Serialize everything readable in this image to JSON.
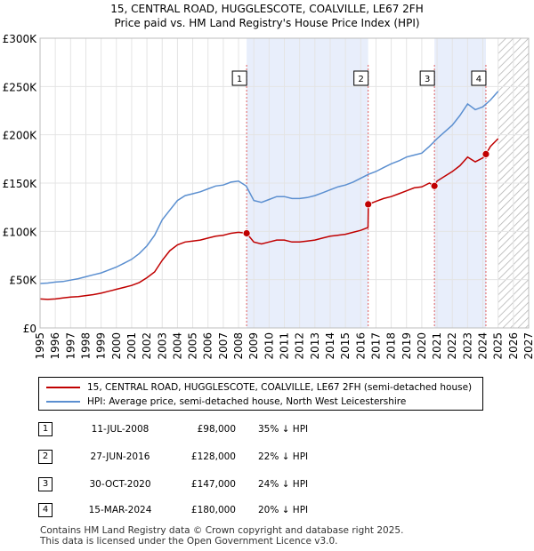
{
  "title_line1": "15, CENTRAL ROAD, HUGGLESCOTE, COALVILLE, LE67 2FH",
  "title_line2": "Price paid vs. HM Land Registry's House Price Index (HPI)",
  "chart_data": {
    "type": "line",
    "title": "15, CENTRAL ROAD, HUGGLESCOTE, COALVILLE, LE67 2FH — Price paid vs. HM Land Registry's House Price Index (HPI)",
    "xlabel": "",
    "ylabel": "",
    "xlim": [
      1995,
      2027
    ],
    "ylim": [
      0,
      300000
    ],
    "x_ticks": [
      1995,
      1996,
      1997,
      1998,
      1999,
      2000,
      2001,
      2002,
      2003,
      2004,
      2005,
      2006,
      2007,
      2008,
      2009,
      2010,
      2011,
      2012,
      2013,
      2014,
      2015,
      2016,
      2017,
      2018,
      2019,
      2020,
      2021,
      2022,
      2023,
      2024,
      2025,
      2026,
      2027
    ],
    "y_ticks": [
      0,
      50000,
      100000,
      150000,
      200000,
      250000,
      300000
    ],
    "y_tick_labels": [
      "£0",
      "£50K",
      "£100K",
      "£150K",
      "£200K",
      "£250K",
      "£300K"
    ],
    "shaded_regions": [
      [
        2008.53,
        2016.49
      ],
      [
        2020.83,
        2024.2
      ]
    ],
    "forecast_hatch_from": 2025.0,
    "series": [
      {
        "name": "HPI: Average price, semi-detached house, North West Leicestershire",
        "color": "#5b8fd0",
        "x": [
          1995.0,
          1995.5,
          1996.0,
          1996.5,
          1997.0,
          1997.5,
          1998.0,
          1998.5,
          1999.0,
          1999.5,
          2000.0,
          2000.5,
          2001.0,
          2001.5,
          2002.0,
          2002.5,
          2003.0,
          2003.5,
          2004.0,
          2004.5,
          2005.0,
          2005.5,
          2006.0,
          2006.5,
          2007.0,
          2007.5,
          2008.0,
          2008.5,
          2009.0,
          2009.5,
          2010.0,
          2010.5,
          2011.0,
          2011.5,
          2012.0,
          2012.5,
          2013.0,
          2013.5,
          2014.0,
          2014.5,
          2015.0,
          2015.5,
          2016.0,
          2016.5,
          2017.0,
          2017.5,
          2018.0,
          2018.5,
          2019.0,
          2019.5,
          2020.0,
          2020.5,
          2021.0,
          2021.5,
          2022.0,
          2022.5,
          2023.0,
          2023.5,
          2024.0,
          2024.5,
          2025.0
        ],
        "values": [
          46000,
          46500,
          47500,
          48000,
          49500,
          51000,
          53000,
          55000,
          57000,
          60000,
          63000,
          67000,
          71000,
          77000,
          85000,
          96000,
          112000,
          122000,
          132000,
          137000,
          139000,
          141000,
          144000,
          147000,
          148000,
          151000,
          152000,
          147000,
          132000,
          130000,
          133000,
          136000,
          136000,
          134000,
          134000,
          135000,
          137000,
          140000,
          143000,
          146000,
          148000,
          151000,
          155000,
          159000,
          162000,
          166000,
          170000,
          173000,
          177000,
          179000,
          181000,
          188000,
          196000,
          203000,
          210000,
          220000,
          232000,
          226000,
          229000,
          236000,
          245000
        ]
      },
      {
        "name": "15, CENTRAL ROAD, HUGGLESCOTE, COALVILLE, LE67 2FH (semi-detached house)",
        "color": "#c00000",
        "x": [
          1995.0,
          1995.5,
          1996.0,
          1996.5,
          1997.0,
          1997.5,
          1998.0,
          1998.5,
          1999.0,
          1999.5,
          2000.0,
          2000.5,
          2001.0,
          2001.5,
          2002.0,
          2002.5,
          2003.0,
          2003.5,
          2004.0,
          2004.5,
          2005.0,
          2005.5,
          2006.0,
          2006.5,
          2007.0,
          2007.5,
          2008.0,
          2008.53,
          2009.0,
          2009.5,
          2010.0,
          2010.5,
          2011.0,
          2011.5,
          2012.0,
          2012.5,
          2013.0,
          2013.5,
          2014.0,
          2014.5,
          2015.0,
          2015.5,
          2016.0,
          2016.48,
          2016.5,
          2017.0,
          2017.5,
          2018.0,
          2018.5,
          2019.0,
          2019.5,
          2020.0,
          2020.5,
          2020.83,
          2021.0,
          2021.5,
          2022.0,
          2022.5,
          2023.0,
          2023.5,
          2024.0,
          2024.2,
          2024.5,
          2025.0
        ],
        "values": [
          30000,
          29500,
          30000,
          31000,
          32000,
          32500,
          33500,
          34500,
          36000,
          38000,
          40000,
          42000,
          44000,
          47000,
          52000,
          58000,
          70000,
          80000,
          86000,
          89000,
          90000,
          91000,
          93000,
          95000,
          96000,
          98000,
          99000,
          98000,
          89000,
          87000,
          89000,
          91000,
          91000,
          89000,
          89000,
          90000,
          91000,
          93000,
          95000,
          96000,
          97000,
          99000,
          101000,
          104000,
          128000,
          131000,
          134000,
          136000,
          139000,
          142000,
          145000,
          146000,
          150000,
          147000,
          152000,
          157000,
          162000,
          168000,
          177000,
          172000,
          176000,
          180000,
          188000,
          196000
        ]
      }
    ],
    "sales": [
      {
        "label": "1",
        "date": "11-JUL-2008",
        "x": 2008.53,
        "price": 98000,
        "price_label": "£98,000",
        "diff": "35% ↓ HPI"
      },
      {
        "label": "2",
        "date": "27-JUN-2016",
        "x": 2016.49,
        "price": 128000,
        "price_label": "£128,000",
        "diff": "22% ↓ HPI"
      },
      {
        "label": "3",
        "date": "30-OCT-2020",
        "x": 2020.83,
        "price": 147000,
        "price_label": "£147,000",
        "diff": "24% ↓ HPI"
      },
      {
        "label": "4",
        "date": "15-MAR-2024",
        "x": 2024.2,
        "price": 180000,
        "price_label": "£180,000",
        "diff": "20% ↓ HPI"
      }
    ]
  },
  "legend": {
    "property_label": "15, CENTRAL ROAD, HUGGLESCOTE, COALVILLE, LE67 2FH (semi-detached house)",
    "hpi_label": "HPI: Average price, semi-detached house, North West Leicestershire",
    "property_color": "#c00000",
    "hpi_color": "#5b8fd0"
  },
  "footer": {
    "line1": "Contains HM Land Registry data © Crown copyright and database right 2025.",
    "line2": "This data is licensed under the Open Government Licence v3.0."
  }
}
